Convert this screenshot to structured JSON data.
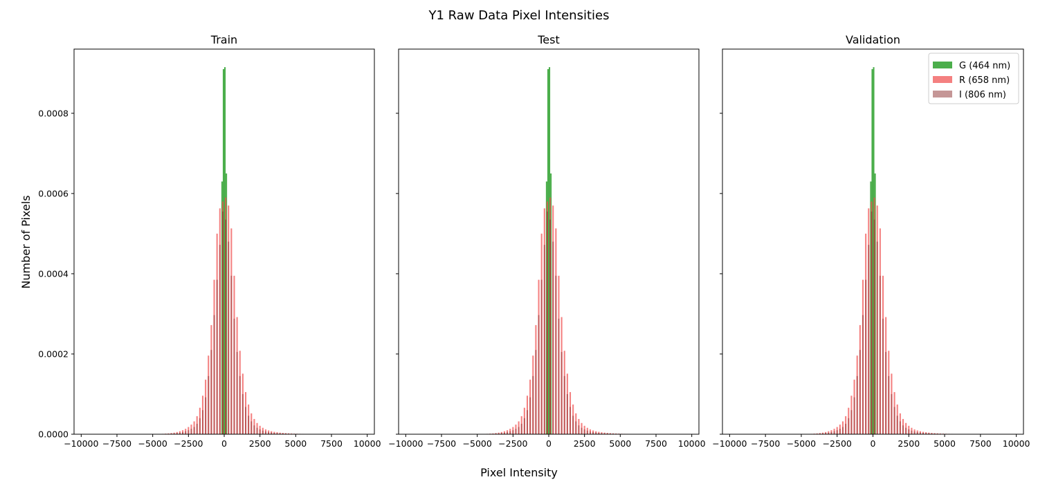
{
  "figure": {
    "title": "Y1 Raw Data Pixel Intensities",
    "xlabel": "Pixel Intensity",
    "ylabel": "Number of Pixels"
  },
  "legend": {
    "placement": "top-right",
    "entries": [
      {
        "label": "G (464 nm)",
        "color": "#2ca02c",
        "opacity": 0.85
      },
      {
        "label": "R (658 nm)",
        "color": "#f04f4f",
        "opacity": 0.72
      },
      {
        "label": "I (806 nm)",
        "color": "#8b2e2e",
        "opacity": 0.5
      }
    ]
  },
  "chart_data": [
    {
      "type": "bar",
      "title": "Train",
      "xlim": [
        -10500,
        10500
      ],
      "ylim": [
        0,
        0.00096
      ],
      "grid": false,
      "xticks": [
        -10000,
        -7500,
        -5000,
        -2500,
        0,
        2500,
        5000,
        7500,
        10000
      ],
      "xtick_labels": [
        "−10000",
        "−7500",
        "−5000",
        "−2500",
        "0",
        "2500",
        "5000",
        "7500",
        "10000"
      ],
      "yticks": [
        0,
        0.0002,
        0.0004,
        0.0006,
        0.0008
      ],
      "ytick_labels": [
        "0.0000",
        "0.0002",
        "0.0004",
        "0.0006",
        "0.0008"
      ],
      "bin_range": [
        -10000,
        10000
      ],
      "bin_count": 200,
      "series": [
        {
          "name": "G (464 nm)",
          "bin_centers": [
            -150,
            -50,
            50,
            150
          ],
          "values": [
            0.00063,
            0.00091,
            0.000915,
            0.00065
          ]
        },
        {
          "name": "R (658 nm)",
          "bin_centers": [
            -4300,
            -4100,
            -3900,
            -3700,
            -3500,
            -3300,
            -3100,
            -2900,
            -2700,
            -2500,
            -2300,
            -2100,
            -1900,
            -1700,
            -1500,
            -1300,
            -1100,
            -900,
            -700,
            -500,
            -300,
            -100,
            100,
            300,
            500,
            700,
            900,
            1100,
            1300,
            1500,
            1700,
            1900,
            2100,
            2300,
            2500,
            2700,
            2900,
            3100,
            3300,
            3500,
            3700,
            3900,
            4100,
            4300,
            4500,
            4700,
            4900,
            5100,
            5300,
            5500,
            5700,
            5900,
            6100
          ],
          "values": [
            1e-06,
            1.5e-06,
            2e-06,
            3e-06,
            4e-06,
            5.5e-06,
            7.5e-06,
            1e-05,
            1.35e-05,
            1.8e-05,
            2.4e-05,
            3.2e-05,
            4.5e-05,
            6.6e-05,
            9.6e-05,
            0.000136,
            0.000196,
            0.000272,
            0.000385,
            0.0005,
            0.000563,
            0.00058,
            0.00059,
            0.00057,
            0.000513,
            0.000395,
            0.000292,
            0.000208,
            0.000151,
            0.000105,
            7.4e-05,
            5.2e-05,
            3.8e-05,
            2.8e-05,
            2.1e-05,
            1.6e-05,
            1.2e-05,
            9.5e-06,
            7.5e-06,
            6e-06,
            5e-06,
            4e-06,
            3.3e-06,
            2.7e-06,
            2.2e-06,
            1.8e-06,
            1.5e-06,
            1.2e-06,
            1e-06,
            9e-07,
            8e-07,
            7e-07,
            6e-07
          ]
        },
        {
          "name": "I (806 nm)",
          "bin_centers": [
            -4300,
            -4100,
            -3900,
            -3700,
            -3500,
            -3300,
            -3100,
            -2900,
            -2700,
            -2500,
            -2300,
            -2100,
            -1900,
            -1700,
            -1500,
            -1300,
            -1100,
            -900,
            -700,
            -500,
            -300,
            -100,
            100,
            300,
            500,
            700,
            900,
            1100,
            1300,
            1500,
            1700,
            1900,
            2100,
            2300,
            2500,
            2700,
            2900,
            3100,
            3300,
            3500,
            3700,
            3900,
            4100,
            4300,
            4500,
            4700,
            4900,
            5100,
            5300,
            5500,
            5700,
            5900,
            6100
          ],
          "values": [
            5e-07,
            8e-07,
            1e-06,
            1.5e-06,
            2e-06,
            3e-06,
            4e-06,
            5.5e-06,
            7.5e-06,
            1e-05,
            1.35e-05,
            1.8e-05,
            2.6e-05,
            4e-05,
            6e-05,
            9.2e-05,
            0.000145,
            0.00021,
            0.000297,
            0.000385,
            0.000472,
            0.000555,
            0.000535,
            0.00048,
            0.000395,
            0.000288,
            0.000205,
            0.000145,
            0.0001,
            6.8e-05,
            4.6e-05,
            3.2e-05,
            2.2e-05,
            1.6e-05,
            1.2e-05,
            9e-06,
            7e-06,
            5.5e-06,
            4.5e-06,
            3.5e-06,
            3e-06,
            2.5e-06,
            2e-06,
            1.6e-06,
            1.3e-06,
            1e-06,
            8e-07,
            7e-07,
            6e-07,
            5e-07,
            4e-07,
            3e-07,
            3e-07
          ]
        }
      ]
    },
    {
      "type": "bar",
      "title": "Test",
      "xlim": [
        -10500,
        10500
      ],
      "ylim": [
        0,
        0.00096
      ],
      "grid": false,
      "xticks": [
        -10000,
        -7500,
        -5000,
        -2500,
        0,
        2500,
        5000,
        7500,
        10000
      ],
      "xtick_labels": [
        "−10000",
        "−7500",
        "−5000",
        "−2500",
        "0",
        "2500",
        "5000",
        "7500",
        "10000"
      ],
      "yticks": [
        0,
        0.0002,
        0.0004,
        0.0006,
        0.0008
      ],
      "ytick_labels": [
        "",
        "",
        "",
        "",
        ""
      ],
      "bin_range": [
        -10000,
        10000
      ],
      "bin_count": 200,
      "series": [
        {
          "name": "G (464 nm)",
          "bin_centers": [
            -150,
            -50,
            50,
            150
          ],
          "values": [
            0.00063,
            0.00091,
            0.000915,
            0.00065
          ]
        },
        {
          "name": "R (658 nm)",
          "bin_centers": [
            -4300,
            -4100,
            -3900,
            -3700,
            -3500,
            -3300,
            -3100,
            -2900,
            -2700,
            -2500,
            -2300,
            -2100,
            -1900,
            -1700,
            -1500,
            -1300,
            -1100,
            -900,
            -700,
            -500,
            -300,
            -100,
            100,
            300,
            500,
            700,
            900,
            1100,
            1300,
            1500,
            1700,
            1900,
            2100,
            2300,
            2500,
            2700,
            2900,
            3100,
            3300,
            3500,
            3700,
            3900,
            4100,
            4300,
            4500,
            4700,
            4900,
            5100,
            5300,
            5500,
            5700,
            5900,
            6100
          ],
          "values": [
            1e-06,
            1.5e-06,
            2e-06,
            3e-06,
            4e-06,
            5.5e-06,
            7.5e-06,
            1e-05,
            1.35e-05,
            1.8e-05,
            2.4e-05,
            3.2e-05,
            4.5e-05,
            6.6e-05,
            9.6e-05,
            0.000136,
            0.000196,
            0.000272,
            0.000385,
            0.0005,
            0.000563,
            0.00058,
            0.00059,
            0.00057,
            0.000513,
            0.000395,
            0.000292,
            0.000208,
            0.000151,
            0.000105,
            7.4e-05,
            5.2e-05,
            3.8e-05,
            2.8e-05,
            2.1e-05,
            1.6e-05,
            1.2e-05,
            9.5e-06,
            7.5e-06,
            6e-06,
            5e-06,
            4e-06,
            3.3e-06,
            2.7e-06,
            2.2e-06,
            1.8e-06,
            1.5e-06,
            1.2e-06,
            1e-06,
            9e-07,
            8e-07,
            7e-07,
            6e-07
          ]
        },
        {
          "name": "I (806 nm)",
          "bin_centers": [
            -4300,
            -4100,
            -3900,
            -3700,
            -3500,
            -3300,
            -3100,
            -2900,
            -2700,
            -2500,
            -2300,
            -2100,
            -1900,
            -1700,
            -1500,
            -1300,
            -1100,
            -900,
            -700,
            -500,
            -300,
            -100,
            100,
            300,
            500,
            700,
            900,
            1100,
            1300,
            1500,
            1700,
            1900,
            2100,
            2300,
            2500,
            2700,
            2900,
            3100,
            3300,
            3500,
            3700,
            3900,
            4100,
            4300,
            4500,
            4700,
            4900,
            5100,
            5300,
            5500,
            5700,
            5900,
            6100
          ],
          "values": [
            5e-07,
            8e-07,
            1e-06,
            1.5e-06,
            2e-06,
            3e-06,
            4e-06,
            5.5e-06,
            7.5e-06,
            1e-05,
            1.35e-05,
            1.8e-05,
            2.6e-05,
            4e-05,
            6e-05,
            9.2e-05,
            0.000145,
            0.00021,
            0.000297,
            0.000385,
            0.000472,
            0.000555,
            0.000535,
            0.00048,
            0.000395,
            0.000288,
            0.000205,
            0.000145,
            0.0001,
            6.8e-05,
            4.6e-05,
            3.2e-05,
            2.2e-05,
            1.6e-05,
            1.2e-05,
            9e-06,
            7e-06,
            5.5e-06,
            4.5e-06,
            3.5e-06,
            3e-06,
            2.5e-06,
            2e-06,
            1.6e-06,
            1.3e-06,
            1e-06,
            8e-07,
            7e-07,
            6e-07,
            5e-07,
            4e-07,
            3e-07,
            3e-07
          ]
        }
      ]
    },
    {
      "type": "bar",
      "title": "Validation",
      "xlim": [
        -10500,
        10500
      ],
      "ylim": [
        0,
        0.00096
      ],
      "grid": false,
      "xticks": [
        -10000,
        -7500,
        -5000,
        -2500,
        0,
        2500,
        5000,
        7500,
        10000
      ],
      "xtick_labels": [
        "−10000",
        "−7500",
        "−5000",
        "−2500",
        "0",
        "2500",
        "5000",
        "7500",
        "10000"
      ],
      "yticks": [
        0,
        0.0002,
        0.0004,
        0.0006,
        0.0008
      ],
      "ytick_labels": [
        "",
        "",
        "",
        "",
        ""
      ],
      "bin_range": [
        -10000,
        10000
      ],
      "bin_count": 200,
      "series": [
        {
          "name": "G (464 nm)",
          "bin_centers": [
            -150,
            -50,
            50,
            150
          ],
          "values": [
            0.00063,
            0.00091,
            0.000915,
            0.00065
          ]
        },
        {
          "name": "R (658 nm)",
          "bin_centers": [
            -4300,
            -4100,
            -3900,
            -3700,
            -3500,
            -3300,
            -3100,
            -2900,
            -2700,
            -2500,
            -2300,
            -2100,
            -1900,
            -1700,
            -1500,
            -1300,
            -1100,
            -900,
            -700,
            -500,
            -300,
            -100,
            100,
            300,
            500,
            700,
            900,
            1100,
            1300,
            1500,
            1700,
            1900,
            2100,
            2300,
            2500,
            2700,
            2900,
            3100,
            3300,
            3500,
            3700,
            3900,
            4100,
            4300,
            4500,
            4700,
            4900,
            5100,
            5300,
            5500,
            5700,
            5900,
            6100
          ],
          "values": [
            1e-06,
            1.5e-06,
            2e-06,
            3e-06,
            4e-06,
            5.5e-06,
            7.5e-06,
            1e-05,
            1.35e-05,
            1.8e-05,
            2.4e-05,
            3.2e-05,
            4.5e-05,
            6.6e-05,
            9.6e-05,
            0.000136,
            0.000196,
            0.000272,
            0.000385,
            0.0005,
            0.000563,
            0.00058,
            0.00059,
            0.00057,
            0.000513,
            0.000395,
            0.000292,
            0.000208,
            0.000151,
            0.000105,
            7.4e-05,
            5.2e-05,
            3.8e-05,
            2.8e-05,
            2.1e-05,
            1.6e-05,
            1.2e-05,
            9.5e-06,
            7.5e-06,
            6e-06,
            5e-06,
            4e-06,
            3.3e-06,
            2.7e-06,
            2.2e-06,
            1.8e-06,
            1.5e-06,
            1.2e-06,
            1e-06,
            9e-07,
            8e-07,
            7e-07,
            6e-07
          ]
        },
        {
          "name": "I (806 nm)",
          "bin_centers": [
            -4300,
            -4100,
            -3900,
            -3700,
            -3500,
            -3300,
            -3100,
            -2900,
            -2700,
            -2500,
            -2300,
            -2100,
            -1900,
            -1700,
            -1500,
            -1300,
            -1100,
            -900,
            -700,
            -500,
            -300,
            -100,
            100,
            300,
            500,
            700,
            900,
            1100,
            1300,
            1500,
            1700,
            1900,
            2100,
            2300,
            2500,
            2700,
            2900,
            3100,
            3300,
            3500,
            3700,
            3900,
            4100,
            4300,
            4500,
            4700,
            4900,
            5100,
            5300,
            5500,
            5700,
            5900,
            6100
          ],
          "values": [
            5e-07,
            8e-07,
            1e-06,
            1.5e-06,
            2e-06,
            3e-06,
            4e-06,
            5.5e-06,
            7.5e-06,
            1e-05,
            1.35e-05,
            1.8e-05,
            2.6e-05,
            4e-05,
            6e-05,
            9.2e-05,
            0.000145,
            0.00021,
            0.000297,
            0.000385,
            0.000472,
            0.000555,
            0.000535,
            0.00048,
            0.000395,
            0.000288,
            0.000205,
            0.000145,
            0.0001,
            6.8e-05,
            4.6e-05,
            3.2e-05,
            2.2e-05,
            1.6e-05,
            1.2e-05,
            9e-06,
            7e-06,
            5.5e-06,
            4.5e-06,
            3.5e-06,
            3e-06,
            2.5e-06,
            2e-06,
            1.6e-06,
            1.3e-06,
            1e-06,
            8e-07,
            7e-07,
            6e-07,
            5e-07,
            4e-07,
            3e-07,
            3e-07
          ]
        }
      ]
    }
  ]
}
